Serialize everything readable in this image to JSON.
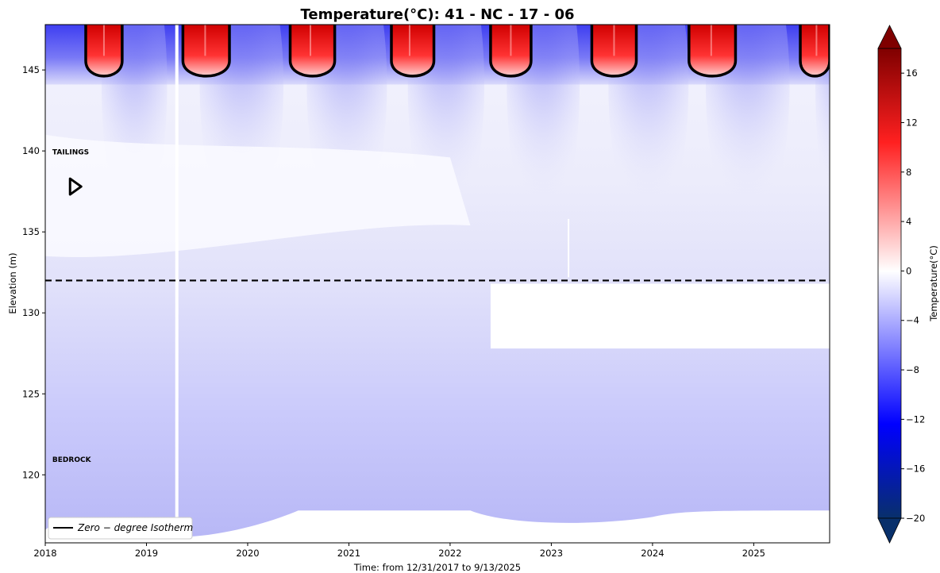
{
  "chart_data": {
    "type": "heatmap",
    "title": "Temperature(°C): 41 - NC - 17 - 06",
    "xlabel": "Time: from 12/31/2017 to 9/13/2025",
    "ylabel": "Elevation (m)",
    "colorbar_label": "Temperature(°C)",
    "xlim": [
      2018.0,
      2025.75
    ],
    "ylim": [
      115.8,
      147.8
    ],
    "x_ticks": [
      2018,
      2019,
      2020,
      2021,
      2022,
      2023,
      2024,
      2025
    ],
    "y_ticks": [
      120,
      125,
      130,
      135,
      140,
      145
    ],
    "colorbar_ticks": [
      16,
      12,
      8,
      4,
      0,
      -4,
      -8,
      -12,
      -16,
      -20
    ],
    "colorbar_range": [
      -20,
      18
    ],
    "colormap": [
      "#08306b",
      "#0000ff",
      "#ffffff",
      "#ff0000",
      "#7f0000"
    ],
    "boundary_elevation": 132.0,
    "layer_labels": [
      {
        "text": "TAILINGS",
        "x": 2018.07,
        "elevation": 139.8
      },
      {
        "text": "BEDROCK",
        "x": 2018.07,
        "elevation": 120.8
      }
    ],
    "thaw_seasons": [
      {
        "start": 2018.4,
        "end": 2018.76,
        "peak": 2018.58
      },
      {
        "start": 2019.36,
        "end": 2019.82,
        "peak": 2019.58
      },
      {
        "start": 2020.42,
        "end": 2020.86,
        "peak": 2020.62
      },
      {
        "start": 2021.42,
        "end": 2021.84,
        "peak": 2021.6
      },
      {
        "start": 2022.4,
        "end": 2022.8,
        "peak": 2022.6
      },
      {
        "start": 2023.4,
        "end": 2023.84,
        "peak": 2023.62
      },
      {
        "start": 2024.36,
        "end": 2024.82,
        "peak": 2024.58
      },
      {
        "start": 2025.46,
        "end": 2025.75,
        "peak": 2025.62
      }
    ],
    "isotherm_bottom_elevation": 144.4,
    "missing_data_blocks": [
      {
        "x_start": 2022.4,
        "x_end": 2025.75,
        "y_start": 127.8,
        "y_end": 131.8
      }
    ],
    "legend": {
      "label": "Zero − degree  Isotherm",
      "position": "lower-left"
    }
  }
}
